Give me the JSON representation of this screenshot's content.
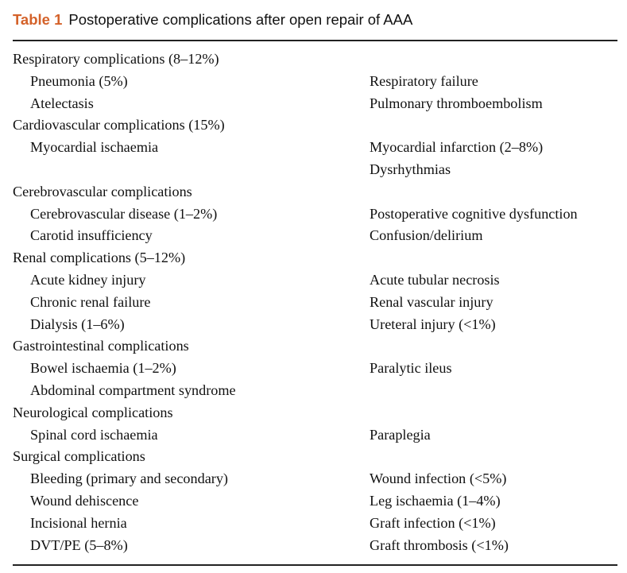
{
  "caption": {
    "label": "Table 1",
    "title": "Postoperative complications after open repair of AAA"
  },
  "rows": [
    {
      "type": "section",
      "text": "Respiratory complications (8–12%)"
    },
    {
      "type": "pair",
      "left": "Pneumonia (5%)",
      "right": "Respiratory failure"
    },
    {
      "type": "pair",
      "left": "Atelectasis",
      "right": "Pulmonary thromboembolism"
    },
    {
      "type": "section",
      "text": "Cardiovascular complications (15%)"
    },
    {
      "type": "pair",
      "left": "Myocardial ischaemia",
      "right": "Myocardial infarction (2–8%)"
    },
    {
      "type": "pair",
      "left": "",
      "right": "Dysrhythmias"
    },
    {
      "type": "section",
      "text": "Cerebrovascular complications"
    },
    {
      "type": "pair",
      "left": "Cerebrovascular disease (1–2%)",
      "right": "Postoperative cognitive dysfunction"
    },
    {
      "type": "pair",
      "left": "Carotid insufficiency",
      "right": "Confusion/delirium"
    },
    {
      "type": "section",
      "text": "Renal complications (5–12%)"
    },
    {
      "type": "pair",
      "left": "Acute kidney injury",
      "right": "Acute tubular necrosis"
    },
    {
      "type": "pair",
      "left": "Chronic renal failure",
      "right": "Renal vascular injury"
    },
    {
      "type": "pair",
      "left": "Dialysis (1–6%)",
      "right": "Ureteral injury (<1%)"
    },
    {
      "type": "section",
      "text": "Gastrointestinal complications"
    },
    {
      "type": "pair",
      "left": "Bowel ischaemia (1–2%)",
      "right": "Paralytic ileus"
    },
    {
      "type": "pair",
      "left": "Abdominal compartment syndrome",
      "right": ""
    },
    {
      "type": "section",
      "text": "Neurological complications"
    },
    {
      "type": "pair",
      "left": "Spinal cord ischaemia",
      "right": "Paraplegia"
    },
    {
      "type": "section",
      "text": "Surgical complications"
    },
    {
      "type": "pair",
      "left": "Bleeding (primary and secondary)",
      "right": "Wound infection (<5%)"
    },
    {
      "type": "pair",
      "left": "Wound dehiscence",
      "right": "Leg ischaemia (1–4%)"
    },
    {
      "type": "pair",
      "left": "Incisional hernia",
      "right": "Graft infection (<1%)"
    },
    {
      "type": "pair",
      "left": "DVT/PE (5–8%)",
      "right": "Graft thrombosis (<1%)"
    }
  ]
}
